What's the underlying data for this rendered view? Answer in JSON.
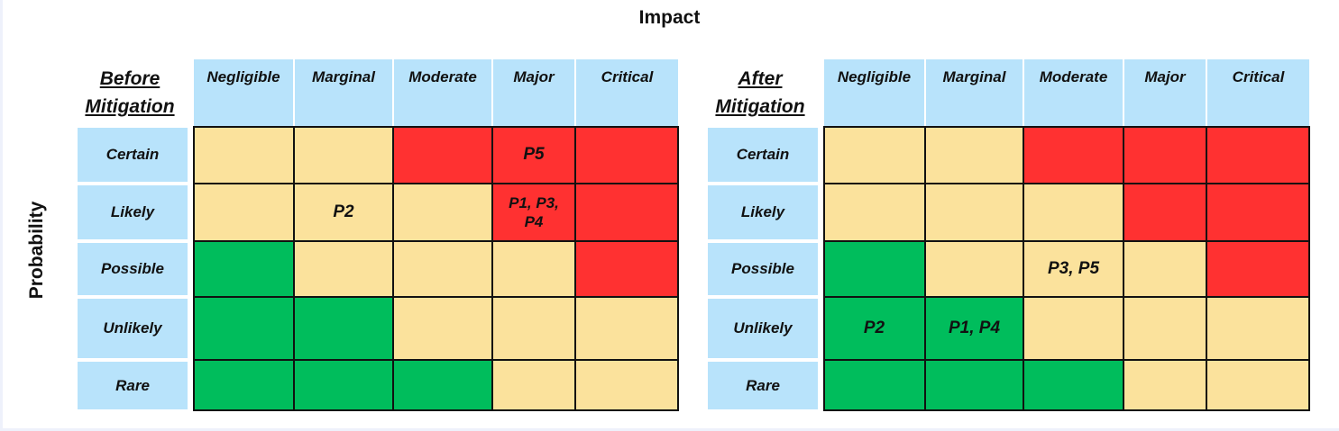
{
  "axis_titles": {
    "impact": "Impact",
    "probability": "Probability"
  },
  "impact_levels": [
    "Negligible",
    "Marginal",
    "Moderate",
    "Major",
    "Critical"
  ],
  "probability_levels": [
    "Certain",
    "Likely",
    "Possible",
    "Unlikely",
    "Rare"
  ],
  "colors": {
    "header_blue": "#b8e3fb",
    "green": "#00bd5c",
    "amber": "#fbe29c",
    "red": "#ff3131"
  },
  "matrices": [
    {
      "title_line1": "Before",
      "title_line2": "Mitigation",
      "rows": [
        {
          "risk": [
            "amber",
            "amber",
            "red",
            "red",
            "red"
          ],
          "labels": [
            "",
            "",
            "",
            "P5",
            ""
          ]
        },
        {
          "risk": [
            "amber",
            "amber",
            "amber",
            "red",
            "red"
          ],
          "labels": [
            "",
            "P2",
            "",
            "P1, P3, P4",
            ""
          ]
        },
        {
          "risk": [
            "green",
            "amber",
            "amber",
            "amber",
            "red"
          ],
          "labels": [
            "",
            "",
            "",
            "",
            ""
          ]
        },
        {
          "risk": [
            "green",
            "green",
            "amber",
            "amber",
            "amber"
          ],
          "labels": [
            "",
            "",
            "",
            "",
            ""
          ]
        },
        {
          "risk": [
            "green",
            "green",
            "green",
            "amber",
            "amber"
          ],
          "labels": [
            "",
            "",
            "",
            "",
            ""
          ]
        }
      ]
    },
    {
      "title_line1": "After",
      "title_line2": "Mitigation",
      "rows": [
        {
          "risk": [
            "amber",
            "amber",
            "red",
            "red",
            "red"
          ],
          "labels": [
            "",
            "",
            "",
            "",
            ""
          ]
        },
        {
          "risk": [
            "amber",
            "amber",
            "amber",
            "red",
            "red"
          ],
          "labels": [
            "",
            "",
            "",
            "",
            ""
          ]
        },
        {
          "risk": [
            "green",
            "amber",
            "amber",
            "amber",
            "red"
          ],
          "labels": [
            "",
            "",
            "P3, P5",
            "",
            ""
          ]
        },
        {
          "risk": [
            "green",
            "green",
            "amber",
            "amber",
            "amber"
          ],
          "labels": [
            "P2",
            "P1, P4",
            "",
            "",
            ""
          ]
        },
        {
          "risk": [
            "green",
            "green",
            "green",
            "amber",
            "amber"
          ],
          "labels": [
            "",
            "",
            "",
            "",
            ""
          ]
        }
      ]
    }
  ]
}
